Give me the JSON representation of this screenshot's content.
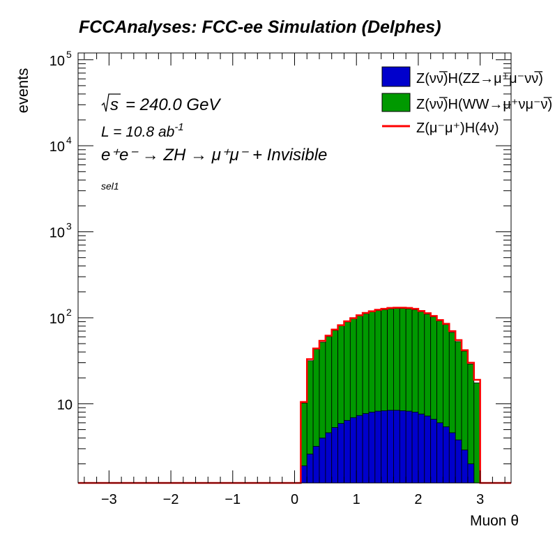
{
  "chart_data": {
    "type": "area",
    "title": "FCCAnalyses: FCC-ee Simulation (Delphes)",
    "xlabel": "Muon θ",
    "ylabel": "events",
    "xlim": [
      -3.5,
      3.5
    ],
    "ylim": [
      1.2,
      120000
    ],
    "log_y": true,
    "x_ticks": [
      {
        "v": -3,
        "label": "−3"
      },
      {
        "v": -2,
        "label": "−2"
      },
      {
        "v": -1,
        "label": "−1"
      },
      {
        "v": 0,
        "label": "0"
      },
      {
        "v": 1,
        "label": "1"
      },
      {
        "v": 2,
        "label": "2"
      },
      {
        "v": 3,
        "label": "3"
      }
    ],
    "y_ticks": [
      {
        "v": 10,
        "base": "10",
        "exp": ""
      },
      {
        "v": 100,
        "base": "10",
        "exp": "2"
      },
      {
        "v": 1000,
        "base": "10",
        "exp": "3"
      },
      {
        "v": 10000,
        "base": "10",
        "exp": "4"
      },
      {
        "v": 100000,
        "base": "10",
        "exp": "5"
      }
    ],
    "annotations": {
      "sqrt_s": "= 240.0 GeV",
      "lumi": "L = 10.8 ab",
      "lumi_exp": "-1",
      "process": "e⁺e⁻ → ZH → μ⁺μ⁻ + Invisible",
      "selection": "sel1"
    },
    "bin_edges": [
      -3.5,
      0.1,
      0.2,
      0.3,
      0.4,
      0.5,
      0.6,
      0.7,
      0.8,
      0.9,
      1.0,
      1.1,
      1.2,
      1.3,
      1.4,
      1.5,
      1.6,
      1.7,
      1.8,
      1.9,
      2.0,
      2.1,
      2.2,
      2.3,
      2.4,
      2.5,
      2.6,
      2.7,
      2.8,
      2.9,
      3.0,
      3.5
    ],
    "series": [
      {
        "name": "Z(νν̅)H(ZZ→μ⁺μ⁻νν̅)",
        "style": "fill",
        "color": "#0000cc",
        "values": [
          0,
          1.9,
          2.6,
          3.2,
          4.0,
          4.6,
          5.3,
          5.9,
          6.4,
          6.9,
          7.3,
          7.7,
          8.0,
          8.2,
          8.3,
          8.4,
          8.4,
          8.3,
          8.2,
          8.0,
          7.6,
          7.2,
          6.6,
          6.0,
          5.4,
          4.6,
          3.8,
          2.9,
          2.0,
          1.2,
          0
        ]
      },
      {
        "name": "Z(νν̅)H(WW→μ⁺νμ⁻ν̅)",
        "style": "fill",
        "color": "#009900",
        "values": [
          0,
          8.3,
          29,
          40,
          48,
          56,
          66,
          75,
          83,
          91,
          98,
          104,
          109,
          113,
          116,
          119,
          120,
          120,
          119,
          116,
          110,
          103,
          96,
          86,
          78,
          63,
          49,
          38,
          27,
          16.3,
          0
        ]
      },
      {
        "name": "Z(μ⁻μ⁺)H(4ν)",
        "style": "line",
        "color": "#ff0000",
        "values": [
          0,
          10.5,
          33,
          44,
          54,
          62,
          73,
          82,
          91,
          99,
          107,
          114,
          119,
          124,
          127,
          130,
          131,
          131,
          130,
          127,
          120,
          113,
          105,
          94,
          85,
          70,
          55,
          42,
          30,
          19,
          0
        ]
      }
    ],
    "legend": {
      "placement": "top-right",
      "entries": [
        "Z(νν̅)H(ZZ→μ⁺μ⁻νν̅)",
        "Z(νν̅)H(WW→μ⁺νμ⁻ν̅)",
        "Z(μ⁻μ⁺)H(4ν)"
      ]
    }
  }
}
